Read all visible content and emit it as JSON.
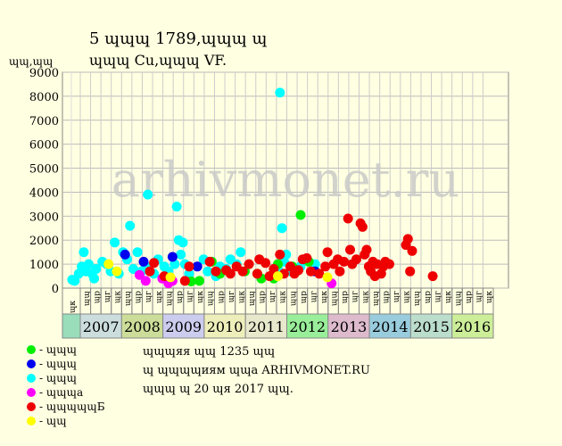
{
  "header": {
    "line1": "5 ɰɰɰ 1789,ɰɰɰ ɰ",
    "line2": "ɰɰɰ Cu,ɰɰɰ VF."
  },
  "y_unit": "ɰɰ,ɰɰ",
  "watermark": "arhivmonet.ru",
  "legend": [
    {
      "label": "- ɰɰɰ",
      "color": "#00ee00"
    },
    {
      "label": "- ɰɰɰ",
      "color": "#0000ee"
    },
    {
      "label": "- ɰɰɰ",
      "color": "#00ffff"
    },
    {
      "label": "- ɰɰɰa",
      "color": "#ff00ff"
    },
    {
      "label": "- ɰɰɰɰɰБ",
      "color": "#ee0000"
    },
    {
      "label": "- ɰɰ",
      "color": "#ffff00"
    }
  ],
  "notes": [
    "ɰɰɰяя ɰɰ 1235 ɰɰ",
    "ɰ ɰɰɰɰиям ɰɰa ARHIVMONET.RU",
    "ɰɰɰ ɰ 20 ɰя 2017 ɰɰ."
  ],
  "chart_data": {
    "type": "scatter",
    "title": "",
    "ylabel": "ɰɰ,ɰɰ",
    "ylim": [
      0,
      9000
    ],
    "yticks": [
      0,
      1000,
      2000,
      3000,
      4000,
      5000,
      6000,
      7000,
      8000,
      9000
    ],
    "grid": true,
    "month_labels": [
      "ɰɰ",
      "ɰр",
      "ɰг",
      "ɰк"
    ],
    "years": [
      {
        "label": "2007",
        "color": "#ccdddd"
      },
      {
        "label": "2008",
        "color": "#ccdd99"
      },
      {
        "label": "2009",
        "color": "#ccccee"
      },
      {
        "label": "2010",
        "color": "#eeeebb"
      },
      {
        "label": "2011",
        "color": "#e8e8cc"
      },
      {
        "label": "2012",
        "color": "#99ee99"
      },
      {
        "label": "2013",
        "color": "#ddbbcc"
      },
      {
        "label": "2014",
        "color": "#99ccdd"
      },
      {
        "label": "2015",
        "color": "#bbddcc"
      },
      {
        "label": "2016",
        "color": "#ccee99"
      }
    ],
    "pre_column_color": "#99ddbb",
    "x_unit": "years since 2006.75",
    "series": [
      {
        "name": "ɰɰɰ",
        "color": "#00ffff",
        "points": [
          [
            0.02,
            350
          ],
          [
            0.08,
            300
          ],
          [
            0.18,
            600
          ],
          [
            0.25,
            900
          ],
          [
            0.3,
            1500
          ],
          [
            0.35,
            700
          ],
          [
            0.42,
            1000
          ],
          [
            0.5,
            600
          ],
          [
            0.55,
            400
          ],
          [
            0.6,
            800
          ],
          [
            0.75,
            1100
          ],
          [
            0.85,
            1000
          ],
          [
            0.95,
            700
          ],
          [
            1.05,
            1900
          ],
          [
            1.15,
            600
          ],
          [
            1.25,
            1500
          ],
          [
            1.35,
            1200
          ],
          [
            1.42,
            2600
          ],
          [
            1.5,
            800
          ],
          [
            1.6,
            1500
          ],
          [
            1.7,
            700
          ],
          [
            1.8,
            900
          ],
          [
            1.85,
            3900
          ],
          [
            2.0,
            600
          ],
          [
            2.1,
            1200
          ],
          [
            2.25,
            900
          ],
          [
            2.35,
            700
          ],
          [
            2.5,
            1000
          ],
          [
            2.55,
            3400
          ],
          [
            2.6,
            2000
          ],
          [
            2.65,
            1400
          ],
          [
            2.7,
            1900
          ],
          [
            2.75,
            1000
          ],
          [
            2.85,
            600
          ],
          [
            3.2,
            1200
          ],
          [
            3.3,
            700
          ],
          [
            3.5,
            500
          ],
          [
            3.6,
            900
          ],
          [
            3.75,
            800
          ],
          [
            3.85,
            1200
          ],
          [
            4.0,
            1000
          ],
          [
            4.1,
            1500
          ],
          [
            5.0,
            800
          ],
          [
            5.05,
            8150
          ],
          [
            5.1,
            2500
          ],
          [
            5.15,
            1100
          ],
          [
            5.2,
            1400
          ],
          [
            5.3,
            700
          ],
          [
            5.55,
            900
          ],
          [
            5.9,
            1000
          ]
        ]
      },
      {
        "name": "ɰɰɰ",
        "color": "#00ee00",
        "points": [
          [
            2.9,
            280
          ],
          [
            3.1,
            300
          ],
          [
            3.4,
            1100
          ],
          [
            3.6,
            600
          ],
          [
            4.2,
            700
          ],
          [
            4.5,
            600
          ],
          [
            4.6,
            400
          ],
          [
            4.9,
            400
          ],
          [
            5.0,
            1000
          ],
          [
            5.35,
            900
          ],
          [
            5.45,
            700
          ],
          [
            5.55,
            3050
          ],
          [
            5.75,
            1100
          ]
        ]
      },
      {
        "name": "ɰɰɰ",
        "color": "#0000ee",
        "points": [
          [
            1.3,
            1400
          ],
          [
            1.75,
            1100
          ],
          [
            2.45,
            1300
          ],
          [
            3.05,
            900
          ],
          [
            5.9,
            700
          ]
        ]
      },
      {
        "name": "ɰɰɰa",
        "color": "#ff00ff",
        "points": [
          [
            1.65,
            550
          ],
          [
            1.8,
            300
          ],
          [
            2.2,
            400
          ],
          [
            2.35,
            200
          ],
          [
            2.45,
            300
          ],
          [
            6.3,
            200
          ]
        ]
      },
      {
        "name": "ɰɰɰɰɰБ",
        "color": "#ee0000",
        "points": [
          [
            1.9,
            700
          ],
          [
            2.0,
            1050
          ],
          [
            2.25,
            500
          ],
          [
            2.75,
            300
          ],
          [
            2.85,
            900
          ],
          [
            3.35,
            1100
          ],
          [
            3.5,
            700
          ],
          [
            3.75,
            750
          ],
          [
            3.85,
            600
          ],
          [
            4.0,
            900
          ],
          [
            4.15,
            700
          ],
          [
            4.3,
            1000
          ],
          [
            4.5,
            600
          ],
          [
            4.55,
            1200
          ],
          [
            4.7,
            1050
          ],
          [
            4.8,
            500
          ],
          [
            4.9,
            800
          ],
          [
            5.05,
            1400
          ],
          [
            5.15,
            600
          ],
          [
            5.3,
            900
          ],
          [
            5.4,
            600
          ],
          [
            5.5,
            750
          ],
          [
            5.6,
            1200
          ],
          [
            5.7,
            1250
          ],
          [
            5.8,
            700
          ],
          [
            6.0,
            600
          ],
          [
            6.15,
            900
          ],
          [
            6.2,
            1500
          ],
          [
            6.35,
            1000
          ],
          [
            6.45,
            1200
          ],
          [
            6.5,
            700
          ],
          [
            6.6,
            1100
          ],
          [
            6.7,
            2900
          ],
          [
            6.75,
            1600
          ],
          [
            6.8,
            1000
          ],
          [
            6.9,
            1200
          ],
          [
            7.0,
            2700
          ],
          [
            7.05,
            2550
          ],
          [
            7.1,
            1400
          ],
          [
            7.15,
            1600
          ],
          [
            7.2,
            900
          ],
          [
            7.25,
            700
          ],
          [
            7.3,
            1100
          ],
          [
            7.35,
            500
          ],
          [
            7.4,
            1000
          ],
          [
            7.5,
            600
          ],
          [
            7.55,
            900
          ],
          [
            7.6,
            1100
          ],
          [
            7.7,
            1000
          ],
          [
            8.1,
            1800
          ],
          [
            8.15,
            2050
          ],
          [
            8.2,
            700
          ],
          [
            8.25,
            1550
          ],
          [
            8.75,
            500
          ]
        ]
      },
      {
        "name": "ɰɰ",
        "color": "#ffff00",
        "points": [
          [
            0.9,
            1000
          ],
          [
            1.1,
            700
          ],
          [
            2.4,
            450
          ],
          [
            5.0,
            500
          ],
          [
            6.2,
            450
          ]
        ]
      }
    ]
  }
}
